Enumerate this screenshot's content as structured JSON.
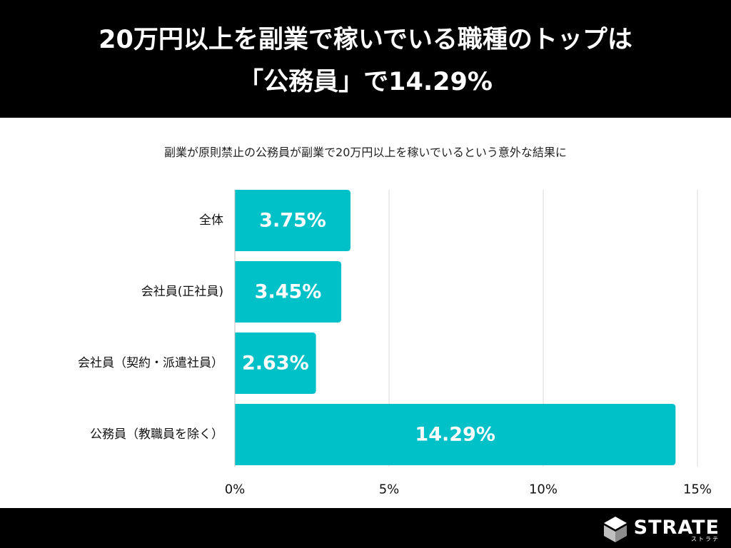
{
  "header": {
    "title_line1": "20万円以上を副業で稼いでいる職種のトップは",
    "title_line2": "「公務員」で14.29%"
  },
  "subtitle": "副業が原則禁止の公務員が副業で20万円以上を稼いでいるという意外な結果に",
  "chart_data": {
    "type": "bar",
    "orientation": "horizontal",
    "categories": [
      "全体",
      "会社員(正社員)",
      "会社員（契約・派遣社員）",
      "公務員（教職員を除く）"
    ],
    "values": [
      3.75,
      3.45,
      2.63,
      14.29
    ],
    "data_labels": [
      "3.75%",
      "3.45%",
      "2.63%",
      "14.29%"
    ],
    "xlim": [
      0,
      15
    ],
    "x_ticks": [
      0,
      5,
      10,
      15
    ],
    "x_tick_labels": [
      "0%",
      "5%",
      "10%",
      "15%"
    ],
    "grid": true,
    "bar_color": "#00c0c8"
  },
  "footer": {
    "logo_text": "STRATE",
    "logo_subtext": "ストラテ",
    "logo_icon": "strate-logo-icon"
  },
  "colors": {
    "header_bg": "#000000",
    "bar": "#00c0c8",
    "grid": "#d9d9d9"
  }
}
